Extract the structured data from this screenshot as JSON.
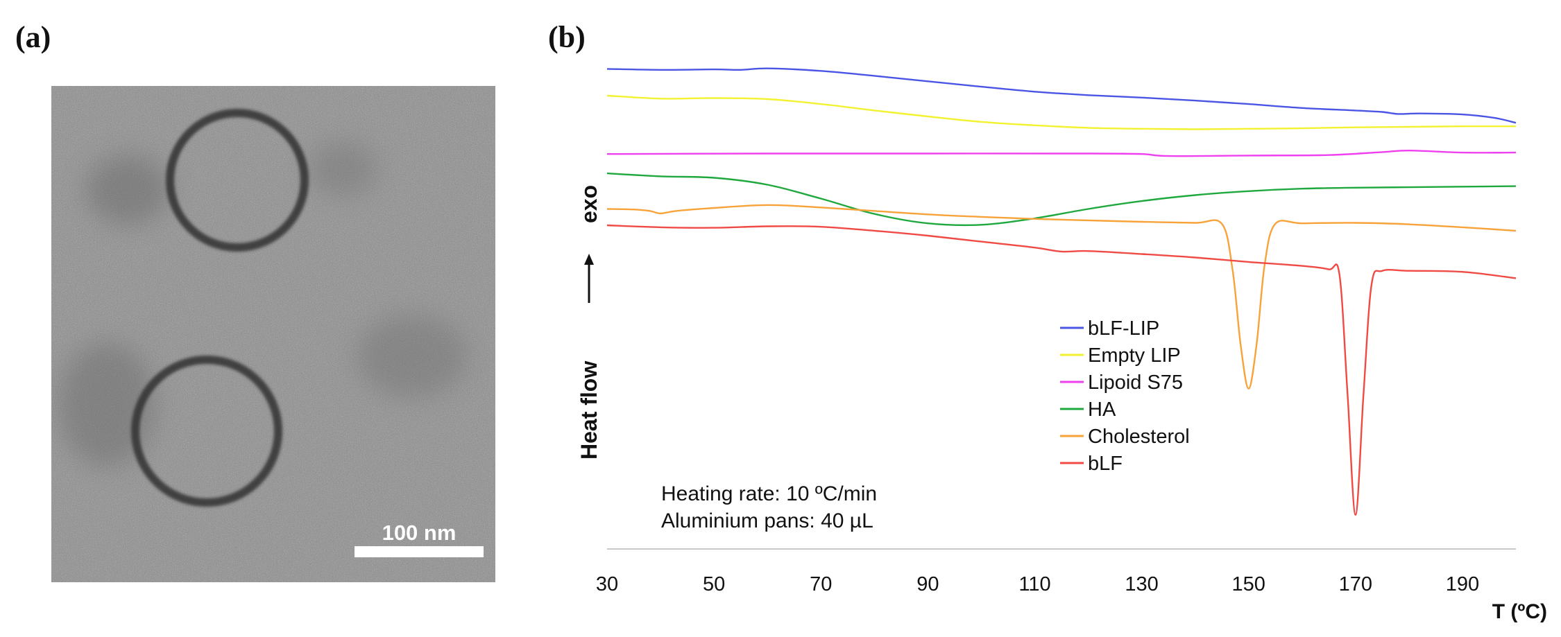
{
  "panels": {
    "a": {
      "label": "(a)",
      "scale_bar_label": "100 nm"
    },
    "b": {
      "label": "(b)"
    }
  },
  "chart_data": {
    "type": "line",
    "title": "",
    "xlabel": "T (ºC)",
    "ylabel_main": "Heat flow",
    "ylabel_exo": "exo",
    "xlim": [
      30,
      200
    ],
    "xticks": [
      30,
      50,
      70,
      90,
      110,
      130,
      150,
      170,
      190
    ],
    "ylim": [
      0,
      100
    ],
    "grid": false,
    "legend_position": "lower-right",
    "annotations": [
      "Heating rate:  10 ºC/min",
      "Aluminium pans: 40 µL"
    ],
    "series": [
      {
        "name": "bLF-LIP",
        "color": "#4a55e6",
        "x": [
          30,
          40,
          50,
          55,
          60,
          70,
          80,
          90,
          100,
          110,
          120,
          130,
          140,
          150,
          160,
          170,
          175,
          178,
          182,
          190,
          196,
          200
        ],
        "y": [
          95.6,
          95.4,
          95.5,
          95.4,
          95.7,
          95.2,
          94.2,
          93.1,
          92.0,
          91.0,
          90.3,
          89.8,
          89.2,
          88.5,
          87.7,
          87.2,
          86.9,
          86.5,
          86.6,
          86.4,
          85.7,
          84.7
        ]
      },
      {
        "name": "Empty LIP",
        "color": "#f2f230",
        "x": [
          30,
          40,
          50,
          60,
          70,
          80,
          90,
          100,
          110,
          120,
          130,
          140,
          150,
          160,
          170,
          180,
          190,
          200
        ],
        "y": [
          90.2,
          89.6,
          89.7,
          89.5,
          88.5,
          87.2,
          86.0,
          84.9,
          84.2,
          83.7,
          83.5,
          83.4,
          83.5,
          83.6,
          83.8,
          83.9,
          84.0,
          84.0
        ]
      },
      {
        "name": "Lipoid S75",
        "color": "#ee40ee",
        "x": [
          30,
          60,
          90,
          120,
          130,
          135,
          150,
          165,
          175,
          180,
          190,
          200
        ],
        "y": [
          78.4,
          78.5,
          78.5,
          78.5,
          78.4,
          78.0,
          78.1,
          78.2,
          78.8,
          79.1,
          78.7,
          78.7
        ]
      },
      {
        "name": "HA",
        "color": "#1fa83d",
        "x": [
          30,
          40,
          50,
          60,
          70,
          80,
          90,
          100,
          110,
          120,
          130,
          140,
          150,
          160,
          170,
          180,
          190,
          200
        ],
        "y": [
          74.5,
          73.9,
          73.6,
          72.2,
          69.4,
          66.3,
          64.4,
          64.1,
          65.4,
          67.3,
          68.9,
          70.1,
          70.9,
          71.4,
          71.6,
          71.7,
          71.8,
          71.9
        ]
      },
      {
        "name": "Cholesterol",
        "color": "#f8a23a",
        "x": [
          30,
          35,
          38,
          40,
          43,
          50,
          60,
          70,
          80,
          90,
          100,
          110,
          120,
          130,
          140,
          145,
          147,
          148.5,
          150,
          151.5,
          153,
          155,
          160,
          170,
          180,
          190,
          200
        ],
        "y": [
          67.3,
          67.2,
          66.9,
          66.4,
          66.9,
          67.5,
          68.1,
          67.6,
          66.9,
          66.2,
          65.7,
          65.3,
          65.0,
          64.7,
          64.5,
          64.3,
          55.0,
          40.0,
          31.0,
          40.0,
          56.0,
          64.3,
          64.4,
          64.5,
          64.2,
          63.6,
          62.9
        ]
      },
      {
        "name": "bLF",
        "color": "#f04a44",
        "x": [
          30,
          40,
          50,
          60,
          70,
          80,
          90,
          100,
          110,
          115,
          120,
          130,
          140,
          150,
          160,
          165,
          167,
          168.5,
          170,
          171.5,
          173,
          175,
          180,
          190,
          200
        ],
        "y": [
          64.0,
          63.6,
          63.5,
          63.8,
          63.7,
          62.9,
          61.9,
          60.7,
          59.5,
          58.7,
          58.8,
          58.2,
          57.5,
          56.6,
          55.8,
          55.1,
          54.0,
          30.0,
          5.5,
          30.0,
          52.0,
          54.8,
          54.8,
          54.6,
          53.3
        ]
      }
    ]
  }
}
